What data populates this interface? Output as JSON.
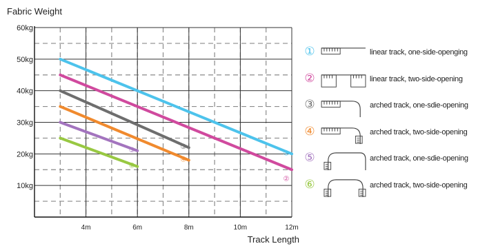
{
  "chart_data": {
    "type": "line",
    "title": "Fabric Weight",
    "xlabel": "Track Length",
    "ylabel": "Fabric Weight",
    "xlim": [
      2,
      12
    ],
    "ylim": [
      0,
      60
    ],
    "x_ticks": [
      "4m",
      "6m",
      "8m",
      "10m",
      "12m"
    ],
    "y_ticks": [
      "10kg",
      "20kg",
      "30kg",
      "40kg",
      "50kg",
      "60kg"
    ],
    "grid": true,
    "legend_position": "right",
    "series": [
      {
        "name": "linear track, one-side-openging",
        "marker": "①",
        "color": "#4DC3EC",
        "x": [
          3,
          12
        ],
        "y": [
          50,
          20
        ]
      },
      {
        "name": "linear track, two-side-opening",
        "marker": "②",
        "color": "#D04A9E",
        "x": [
          3,
          12
        ],
        "y": [
          45,
          15
        ]
      },
      {
        "name": "arched track, one-sdie-opening",
        "marker": "③",
        "color": "#6E6E6E",
        "x": [
          3,
          8
        ],
        "y": [
          40,
          22
        ]
      },
      {
        "name": "arched track, two-side-opening",
        "marker": "④",
        "color": "#F08A2E",
        "x": [
          3,
          8
        ],
        "y": [
          35,
          18
        ]
      },
      {
        "name": "arched track, one-sdie-opening",
        "marker": "⑤",
        "color": "#A374BE",
        "x": [
          3,
          6
        ],
        "y": [
          30,
          21
        ]
      },
      {
        "name": "arched track, two-side-opening",
        "marker": "⑥",
        "color": "#98C842",
        "x": [
          3,
          6
        ],
        "y": [
          25,
          16
        ]
      }
    ]
  },
  "legend": {
    "items": [
      {
        "marker": "①",
        "label": "linear track, one-side-openging",
        "icon": "linear-track-one-side-icon"
      },
      {
        "marker": "②",
        "label": "linear track, two-side-opening",
        "icon": "linear-track-two-side-icon"
      },
      {
        "marker": "③",
        "label": "arched track, one-sdie-opening",
        "icon": "arched-track-one-side-icon"
      },
      {
        "marker": "④",
        "label": "arched track, two-side-opening",
        "icon": "arched-track-two-side-icon"
      },
      {
        "marker": "⑤",
        "label": "arched track, one-sdie-opening",
        "icon": "arched-track-one-side-icon"
      },
      {
        "marker": "⑥",
        "label": "arched track, two-side-opening",
        "icon": "arched-track-two-side-icon"
      }
    ]
  }
}
